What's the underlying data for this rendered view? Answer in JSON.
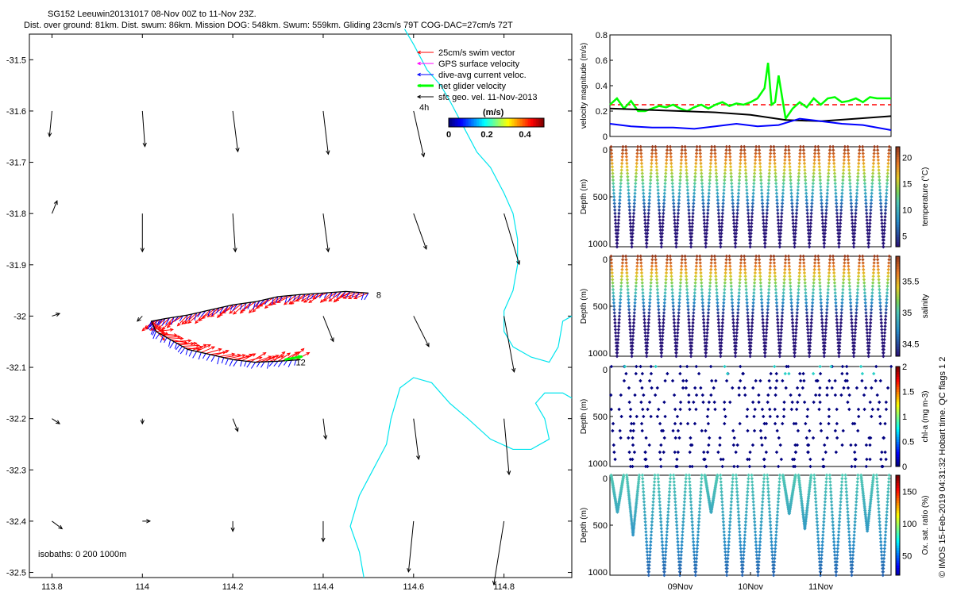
{
  "header": {
    "title_line1": "SG152 Leeuwin20131017 08-Nov 00Z to 11-Nov 23Z.",
    "title_line2": "Dist. over ground: 81km. Dist. swum: 86km. Mission DOG: 548km. Swum: 559km. Gliding 23cm/s 79T COG-DAC=27cm/s 72T"
  },
  "footer_text": "© IMOS 15-Feb-2019 04:31:32 Hobart time. QC flags 1  2",
  "chart_data": [
    {
      "id": "map",
      "type": "scatter",
      "xlim": [
        113.75,
        114.95
      ],
      "ylim": [
        -32.51,
        -31.45
      ],
      "x_ticks": [
        113.8,
        114,
        114.2,
        114.4,
        114.6,
        114.8
      ],
      "x_tick_labels": [
        "113.8",
        "114",
        "114.2",
        "114.4",
        "114.6",
        "114.8"
      ],
      "y_ticks": [
        -31.5,
        -31.6,
        -31.7,
        -31.8,
        -31.9,
        -32,
        -32.1,
        -32.2,
        -32.3,
        -32.4,
        -32.5
      ],
      "y_tick_labels": [
        "-31.5",
        "-31.6",
        "-31.7",
        "-31.8",
        "-31.9",
        "-32",
        "-32.1",
        "-32.2",
        "-32.3",
        "-32.4",
        "-32.5"
      ],
      "legend_position": "top-right",
      "legend": [
        {
          "label": "25cm/s swim vector",
          "color": "#ff0000"
        },
        {
          "label": "GPS surface velocity",
          "color": "#ff00ff"
        },
        {
          "label": "dive-avg current veloc.",
          "color": "#0000ff"
        },
        {
          "label": "net glider velocity",
          "color": "#00ff00"
        },
        {
          "label": "sfc geo. vel. 11-Nov-2013",
          "color": "#000000"
        }
      ],
      "annotation_4h": "4h",
      "colorbar": {
        "title": "(m/s)",
        "tick_labels": [
          "0",
          "0.2",
          "0.4"
        ],
        "ticks": [
          0,
          0.2,
          0.4
        ],
        "range": [
          0,
          0.5
        ]
      },
      "isobaths_text": "isobaths: 0   200  1000m",
      "track_end_labels": [
        "8",
        "12"
      ],
      "geostrophic_vectors": [
        {
          "lon": 113.8,
          "lat": -31.6,
          "u": -0.01,
          "v": -0.1
        },
        {
          "lon": 114.0,
          "lat": -31.6,
          "u": 0.01,
          "v": -0.14
        },
        {
          "lon": 114.2,
          "lat": -31.6,
          "u": 0.02,
          "v": -0.16
        },
        {
          "lon": 114.4,
          "lat": -31.6,
          "u": 0.02,
          "v": -0.17
        },
        {
          "lon": 114.6,
          "lat": -31.6,
          "u": 0.04,
          "v": -0.18
        },
        {
          "lon": 113.8,
          "lat": -31.8,
          "u": 0.02,
          "v": 0.05
        },
        {
          "lon": 114.0,
          "lat": -31.8,
          "u": 0.0,
          "v": -0.15
        },
        {
          "lon": 114.2,
          "lat": -31.8,
          "u": 0.01,
          "v": -0.15
        },
        {
          "lon": 114.4,
          "lat": -31.8,
          "u": 0.02,
          "v": -0.15
        },
        {
          "lon": 114.6,
          "lat": -31.8,
          "u": 0.05,
          "v": -0.14
        },
        {
          "lon": 114.8,
          "lat": -31.8,
          "u": 0.06,
          "v": -0.2
        },
        {
          "lon": 113.8,
          "lat": -32.0,
          "u": 0.03,
          "v": 0.01
        },
        {
          "lon": 114.0,
          "lat": -32.0,
          "u": -0.02,
          "v": -0.02
        },
        {
          "lon": 114.4,
          "lat": -32.0,
          "u": 0.04,
          "v": -0.1
        },
        {
          "lon": 114.6,
          "lat": -32.0,
          "u": 0.06,
          "v": -0.12
        },
        {
          "lon": 114.8,
          "lat": -32.0,
          "u": 0.04,
          "v": -0.22
        },
        {
          "lon": 113.8,
          "lat": -32.2,
          "u": 0.03,
          "v": -0.02
        },
        {
          "lon": 114.0,
          "lat": -32.2,
          "u": 0.0,
          "v": -0.02
        },
        {
          "lon": 114.2,
          "lat": -32.2,
          "u": 0.02,
          "v": -0.05
        },
        {
          "lon": 114.4,
          "lat": -32.2,
          "u": 0.01,
          "v": -0.08
        },
        {
          "lon": 114.6,
          "lat": -32.2,
          "u": 0.02,
          "v": -0.16
        },
        {
          "lon": 114.8,
          "lat": -32.2,
          "u": 0.02,
          "v": -0.22
        },
        {
          "lon": 113.8,
          "lat": -32.4,
          "u": 0.04,
          "v": -0.03
        },
        {
          "lon": 114.0,
          "lat": -32.4,
          "u": 0.03,
          "v": -0.0
        },
        {
          "lon": 114.2,
          "lat": -32.4,
          "u": 0.0,
          "v": -0.04
        },
        {
          "lon": 114.4,
          "lat": -32.4,
          "u": 0.0,
          "v": -0.08
        },
        {
          "lon": 114.6,
          "lat": -32.4,
          "u": -0.02,
          "v": -0.2
        },
        {
          "lon": 114.8,
          "lat": -32.4,
          "u": -0.04,
          "v": -0.25
        }
      ],
      "glider_track": [
        {
          "lon": 114.5,
          "lat": -31.955
        },
        {
          "lon": 114.45,
          "lat": -31.952
        },
        {
          "lon": 114.4,
          "lat": -31.955
        },
        {
          "lon": 114.35,
          "lat": -31.958
        },
        {
          "lon": 114.3,
          "lat": -31.962
        },
        {
          "lon": 114.25,
          "lat": -31.972
        },
        {
          "lon": 114.2,
          "lat": -31.978
        },
        {
          "lon": 114.15,
          "lat": -31.988
        },
        {
          "lon": 114.1,
          "lat": -31.998
        },
        {
          "lon": 114.05,
          "lat": -32.005
        },
        {
          "lon": 114.02,
          "lat": -32.01
        },
        {
          "lon": 114.03,
          "lat": -32.03
        },
        {
          "lon": 114.07,
          "lat": -32.05
        },
        {
          "lon": 114.1,
          "lat": -32.065
        },
        {
          "lon": 114.15,
          "lat": -32.075
        },
        {
          "lon": 114.2,
          "lat": -32.085
        },
        {
          "lon": 114.25,
          "lat": -32.09
        },
        {
          "lon": 114.3,
          "lat": -32.088
        },
        {
          "lon": 114.35,
          "lat": -32.085
        }
      ],
      "coastline": [
        [
          114.58,
          -31.44
        ],
        [
          114.6,
          -31.47
        ],
        [
          114.63,
          -31.52
        ],
        [
          114.66,
          -31.55
        ],
        [
          114.68,
          -31.58
        ],
        [
          114.71,
          -31.63
        ],
        [
          114.74,
          -31.68
        ],
        [
          114.77,
          -31.71
        ],
        [
          114.8,
          -31.76
        ],
        [
          114.82,
          -31.8
        ],
        [
          114.83,
          -31.85
        ],
        [
          114.83,
          -31.9
        ],
        [
          114.82,
          -31.95
        ],
        [
          114.8,
          -31.99
        ],
        [
          114.8,
          -32.03
        ],
        [
          114.82,
          -32.06
        ],
        [
          114.86,
          -32.08
        ],
        [
          114.9,
          -32.09
        ],
        [
          114.92,
          -32.06
        ],
        [
          114.93,
          -32.01
        ],
        [
          114.95,
          -32.0
        ]
      ],
      "coastline_south": [
        [
          114.49,
          -32.51
        ],
        [
          114.48,
          -32.46
        ],
        [
          114.46,
          -32.41
        ],
        [
          114.48,
          -32.35
        ],
        [
          114.51,
          -32.3
        ],
        [
          114.54,
          -32.25
        ],
        [
          114.55,
          -32.2
        ],
        [
          114.57,
          -32.14
        ],
        [
          114.6,
          -32.12
        ],
        [
          114.64,
          -32.13
        ],
        [
          114.68,
          -32.17
        ],
        [
          114.72,
          -32.2
        ],
        [
          114.77,
          -32.24
        ],
        [
          114.82,
          -32.26
        ],
        [
          114.86,
          -32.26
        ],
        [
          114.9,
          -32.24
        ],
        [
          114.89,
          -32.2
        ],
        [
          114.87,
          -32.17
        ],
        [
          114.89,
          -32.15
        ],
        [
          114.93,
          -32.15
        ],
        [
          114.95,
          -32.16
        ]
      ]
    },
    {
      "id": "velocity",
      "type": "line",
      "xlim": [
        8.0,
        12.0
      ],
      "ylim": [
        0,
        0.8
      ],
      "ylabel": "velocity magnitude (m/s)",
      "y_ticks": [
        0,
        0.2,
        0.4,
        0.6,
        0.8
      ],
      "y_tick_labels": [
        "0",
        "0.2",
        "0.4",
        "0.6",
        "0.8"
      ],
      "series": [
        {
          "color": "#ff0000",
          "style": "dashed",
          "x": [
            8.0,
            12.0
          ],
          "y": [
            0.25,
            0.25
          ]
        },
        {
          "color": "#00ff00",
          "x": [
            8.0,
            8.1,
            8.2,
            8.3,
            8.4,
            8.5,
            8.6,
            8.7,
            8.8,
            8.9,
            9.0,
            9.1,
            9.2,
            9.3,
            9.4,
            9.5,
            9.6,
            9.7,
            9.8,
            9.9,
            10.0,
            10.1,
            10.2,
            10.25,
            10.3,
            10.35,
            10.4,
            10.5,
            10.6,
            10.7,
            10.8,
            10.9,
            11.0,
            11.1,
            11.2,
            11.3,
            11.4,
            11.5,
            11.6,
            11.7,
            11.8,
            11.9,
            12.0
          ],
          "y": [
            0.25,
            0.3,
            0.22,
            0.28,
            0.2,
            0.2,
            0.22,
            0.24,
            0.23,
            0.25,
            0.22,
            0.2,
            0.23,
            0.25,
            0.22,
            0.25,
            0.27,
            0.24,
            0.26,
            0.25,
            0.27,
            0.3,
            0.38,
            0.58,
            0.25,
            0.27,
            0.48,
            0.14,
            0.22,
            0.27,
            0.23,
            0.3,
            0.25,
            0.3,
            0.31,
            0.27,
            0.28,
            0.3,
            0.27,
            0.31,
            0.3,
            0.3,
            0.3
          ]
        },
        {
          "color": "#000000",
          "x": [
            8.0,
            8.5,
            9.0,
            9.5,
            10.0,
            10.5,
            11.0,
            11.5,
            12.0
          ],
          "y": [
            0.22,
            0.21,
            0.2,
            0.19,
            0.17,
            0.13,
            0.12,
            0.14,
            0.16
          ]
        },
        {
          "color": "#0000ff",
          "x": [
            8.0,
            8.3,
            8.6,
            8.9,
            9.2,
            9.5,
            9.8,
            10.1,
            10.4,
            10.7,
            11.0,
            11.3,
            11.6,
            12.0
          ],
          "y": [
            0.1,
            0.08,
            0.07,
            0.07,
            0.06,
            0.08,
            0.1,
            0.08,
            0.09,
            0.14,
            0.12,
            0.1,
            0.09,
            0.05
          ]
        }
      ]
    },
    {
      "id": "temperature",
      "type": "scatter",
      "xlim": [
        8.0,
        12.0
      ],
      "ylim": [
        1000,
        0
      ],
      "ylabel": "Depth (m)",
      "y_tick_labels": [
        "0",
        "500",
        "1000"
      ],
      "colorbar_label": "temperature (°C)",
      "colorbar_range": [
        3,
        22
      ],
      "colorbar_ticks": [
        5,
        10,
        15,
        20
      ],
      "colorbar_tick_labels": [
        "5",
        "10",
        "15",
        "20"
      ],
      "dives": 19,
      "max_depth": 1000
    },
    {
      "id": "salinity",
      "type": "scatter",
      "xlim": [
        8.0,
        12.0
      ],
      "ylim": [
        1000,
        0
      ],
      "ylabel": "Depth (m)",
      "y_tick_labels": [
        "0",
        "500",
        "1000"
      ],
      "colorbar_label": "salinity",
      "colorbar_range": [
        34.3,
        35.9
      ],
      "colorbar_ticks": [
        34.5,
        35,
        35.5
      ],
      "colorbar_tick_labels": [
        "34.5",
        "35",
        "35.5"
      ],
      "dives": 19,
      "max_depth": 1000
    },
    {
      "id": "chla",
      "type": "scatter",
      "xlim": [
        8.0,
        12.0
      ],
      "ylim": [
        1000,
        0
      ],
      "ylabel": "Depth (m)",
      "y_tick_labels": [
        "0",
        "500",
        "1000"
      ],
      "colorbar_label": "chl-a (mg m-3)",
      "colorbar_range": [
        0,
        2
      ],
      "colorbar_ticks": [
        0,
        0.5,
        1,
        1.5,
        2
      ],
      "colorbar_tick_labels": [
        "0",
        "0.5",
        "1",
        "1.5",
        "2"
      ],
      "dives": 19,
      "max_depth": 1000
    },
    {
      "id": "oxygen",
      "type": "scatter",
      "xlim": [
        8.0,
        12.0
      ],
      "ylim": [
        1000,
        0
      ],
      "ylabel": "Depth (m)",
      "y_tick_labels": [
        "0",
        "500",
        "1000"
      ],
      "colorbar_label": "Ox. sat. ratio (%)",
      "colorbar_range": [
        20,
        175
      ],
      "colorbar_ticks": [
        50,
        100,
        150
      ],
      "colorbar_tick_labels": [
        "50",
        "100",
        "150"
      ],
      "dives": 18,
      "max_depth": 1000,
      "x_ticks": [
        9.0,
        10.0,
        11.0
      ],
      "x_tick_labels": [
        "09Nov",
        "10Nov",
        "11Nov"
      ]
    }
  ]
}
